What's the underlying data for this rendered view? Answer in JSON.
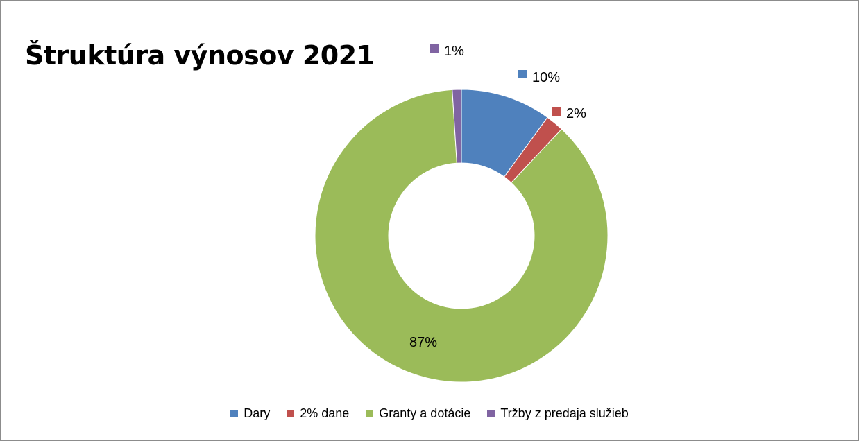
{
  "chart_data": {
    "type": "donut",
    "title": "Štruktúra výnosov 2021",
    "categories": [
      "Dary",
      "2% dane",
      "Granty a dotácie",
      "Tržby z predaja služieb"
    ],
    "values": [
      10,
      2,
      87,
      1
    ],
    "data_labels": [
      "10%",
      "2%",
      "87%",
      "1%"
    ],
    "colors": [
      "#4F81BD",
      "#C0504D",
      "#9BBB59",
      "#8064A2"
    ],
    "legend_position": "bottom",
    "start_angle_deg": 0,
    "direction": "clockwise"
  }
}
